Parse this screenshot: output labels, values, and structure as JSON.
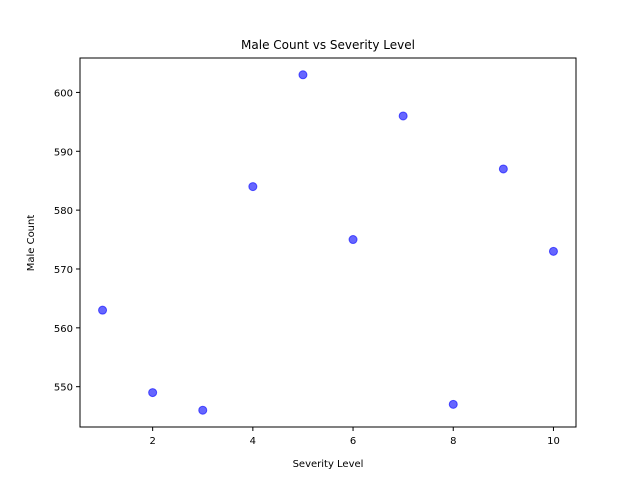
{
  "chart_data": {
    "type": "scatter",
    "title": "Male Count vs Severity Level",
    "xlabel": "Severity Level",
    "ylabel": "Male Count",
    "xlim": [
      0.55,
      10.45
    ],
    "ylim": [
      543.15,
      605.85
    ],
    "xticks": [
      2,
      4,
      6,
      8,
      10
    ],
    "yticks": [
      550,
      560,
      570,
      580,
      590,
      600
    ],
    "grid": false,
    "point_color": "#0000ff",
    "point_opacity": 0.6,
    "points": [
      {
        "x": 1,
        "y": 563
      },
      {
        "x": 2,
        "y": 549
      },
      {
        "x": 3,
        "y": 546
      },
      {
        "x": 4,
        "y": 584
      },
      {
        "x": 5,
        "y": 603
      },
      {
        "x": 6,
        "y": 575
      },
      {
        "x": 7,
        "y": 596
      },
      {
        "x": 8,
        "y": 547
      },
      {
        "x": 9,
        "y": 587
      },
      {
        "x": 10,
        "y": 573
      }
    ]
  }
}
